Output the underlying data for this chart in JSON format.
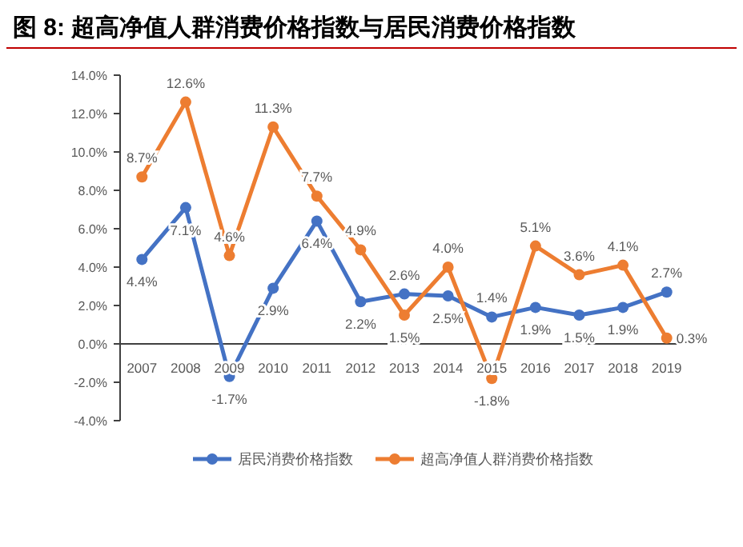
{
  "chart_data": {
    "type": "line",
    "title": "图 8: 超高净值人群消费价格指数与居民消费价格指数",
    "categories": [
      "2007",
      "2008",
      "2009",
      "2010",
      "2011",
      "2012",
      "2013",
      "2014",
      "2015",
      "2016",
      "2017",
      "2018",
      "2019"
    ],
    "series": [
      {
        "name": "居民消费价格指数",
        "color": "#4472c4",
        "values": [
          4.4,
          7.1,
          -1.7,
          2.9,
          6.4,
          2.2,
          2.6,
          2.5,
          1.4,
          1.9,
          1.5,
          1.9,
          2.7
        ],
        "value_labels": [
          "4.4%",
          "7.1%",
          "-1.7%",
          "2.9%",
          "6.4%",
          "2.2%",
          "2.6%",
          "2.5%",
          "1.4%",
          "1.9%",
          "1.5%",
          "1.9%",
          "2.7%"
        ]
      },
      {
        "name": "超高净值人群消费价格指数",
        "color": "#ed7d31",
        "values": [
          8.7,
          12.6,
          4.6,
          11.3,
          7.7,
          4.9,
          1.5,
          4.0,
          -1.8,
          5.1,
          3.6,
          4.1,
          0.3
        ],
        "value_labels": [
          "8.7%",
          "12.6%",
          "4.6%",
          "11.3%",
          "7.7%",
          "4.9%",
          "1.5%",
          "4.0%",
          "-1.8%",
          "5.1%",
          "3.6%",
          "4.1%",
          "0.3%"
        ]
      }
    ],
    "ylim": [
      -4,
      14
    ],
    "yticks": [
      {
        "value": -4,
        "label": "-4.0%"
      },
      {
        "value": -2,
        "label": "-2.0%"
      },
      {
        "value": 0,
        "label": "0.0%"
      },
      {
        "value": 2,
        "label": "2.0%"
      },
      {
        "value": 4,
        "label": "4.0%"
      },
      {
        "value": 6,
        "label": "6.0%"
      },
      {
        "value": 8,
        "label": "8.0%"
      },
      {
        "value": 10,
        "label": "10.0%"
      },
      {
        "value": 12,
        "label": "12.0%"
      },
      {
        "value": 14,
        "label": "14.0%"
      }
    ],
    "marker": "circle",
    "grid": false,
    "legend": "bottom"
  }
}
